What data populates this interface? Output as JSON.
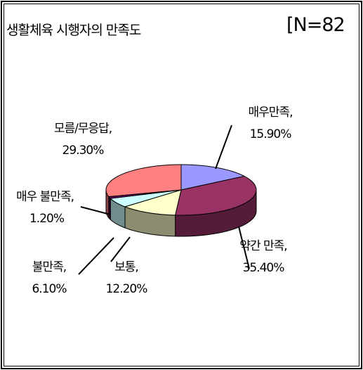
{
  "chart_data": {
    "type": "pie3d",
    "title": "생활체육 시행자의 만족도",
    "annotation": "[N=82",
    "categories": [
      "매우만족,",
      "약간 만족,",
      "보통,",
      "불만족,",
      "매우 불만족,",
      "모름/무응답,"
    ],
    "values": [
      15.9,
      35.4,
      12.2,
      6.1,
      1.2,
      29.3
    ],
    "value_labels": [
      "15.90%",
      "35.40%",
      "12.20%",
      "6.10%",
      "1.20%",
      "29.30%"
    ],
    "colors": [
      "#9999ff",
      "#993366",
      "#ffffcc",
      "#ccffff",
      "#660066",
      "#ff8080"
    ]
  }
}
